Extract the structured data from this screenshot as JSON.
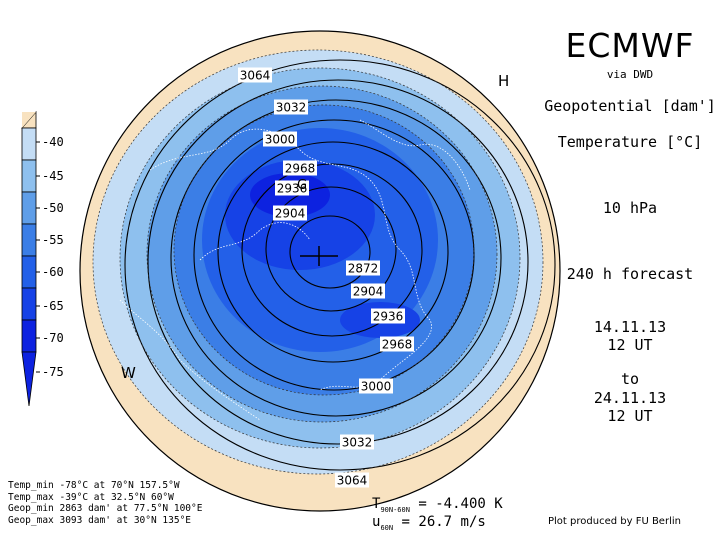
{
  "header": {
    "title": "ECMWF",
    "via": "via DWD",
    "var1": "Geopotential [dam']",
    "var2": "Temperature [°C]",
    "level": "10 hPa",
    "forecast": "240 h forecast",
    "init_date": "14.11.13",
    "init_time": "12 UT",
    "to": "to",
    "valid_date": "24.11.13",
    "valid_time": "12 UT"
  },
  "colorbar": {
    "labels": [
      "-40",
      "-45",
      "-50",
      "-55",
      "-60",
      "-65",
      "-70",
      "-75"
    ],
    "colors": [
      "#f8e2c0",
      "#c4ddf5",
      "#8ec0ee",
      "#5f9ee8",
      "#3b7ee6",
      "#2360e8",
      "#1642e6",
      "#0d22e0"
    ]
  },
  "contour_labels": [
    "3064",
    "3032",
    "3000",
    "2968",
    "2936",
    "2904",
    "2872",
    "2904",
    "2936",
    "2968",
    "3000",
    "3032",
    "3064"
  ],
  "markers": {
    "high": "H",
    "west": "W",
    "high_center": "G"
  },
  "stats": [
    "Temp_min -78°C at 70°N 157.5°W",
    "Temp_max -39°C at 32.5°N 60°W",
    "Geop_min 2863 dam' at 77.5°N 100°E",
    "Geop_max 3093 dam' at 30°N 135°E"
  ],
  "diagnostics": {
    "t_label": "T",
    "t_sub": "90N-60N",
    "t_value": "= -4.400 K",
    "u_label": "u",
    "u_sub": "60N",
    "u_value": "= 26.7 m/s"
  },
  "credit": "Plot produced by FU Berlin"
}
